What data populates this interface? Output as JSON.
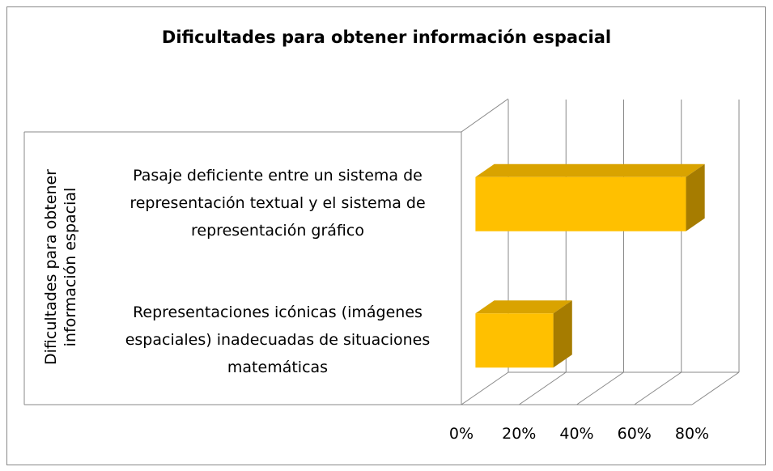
{
  "chart_data": {
    "type": "bar3d_horizontal",
    "title": "Dificultades para obtener información espacial",
    "y_axis_label": "Dificultades para obtener información espacial",
    "categories": [
      "Pasaje deficiente entre un sistema de representación textual y el sistema de representación gráfico",
      "Representaciones icónicas (imágenes espaciales) inadecuadas de situaciones matemáticas"
    ],
    "values": [
      73,
      27
    ],
    "color": "#ffc000",
    "xlim": [
      0,
      80
    ],
    "xticks": [
      {
        "value": 0,
        "label": "0%"
      },
      {
        "value": 20,
        "label": "20%"
      },
      {
        "value": 40,
        "label": "40%"
      },
      {
        "value": 60,
        "label": "60%"
      },
      {
        "value": 80,
        "label": "80%"
      }
    ],
    "grid": true
  }
}
